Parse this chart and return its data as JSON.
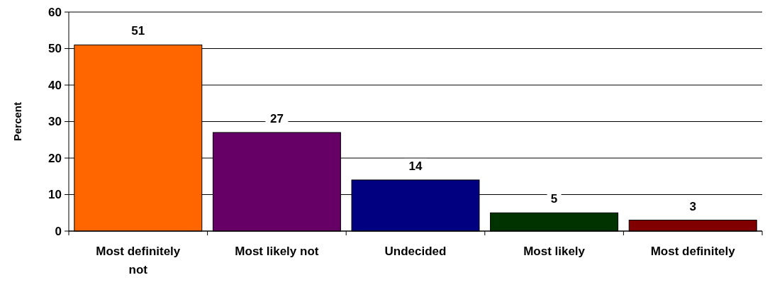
{
  "chart_data": {
    "type": "bar",
    "ylabel": "Percent",
    "categories": [
      "Most definitely not",
      "Most likely not",
      "Undecided",
      "Most likely",
      "Most definitely"
    ],
    "values": [
      51,
      27,
      14,
      5,
      3
    ],
    "colors": [
      "#ff6600",
      "#660066",
      "#000080",
      "#003300",
      "#800000"
    ],
    "ylim": [
      0,
      60
    ],
    "yticks": [
      0,
      10,
      20,
      30,
      40,
      50,
      60
    ],
    "grid": "y",
    "data_labels": true
  }
}
